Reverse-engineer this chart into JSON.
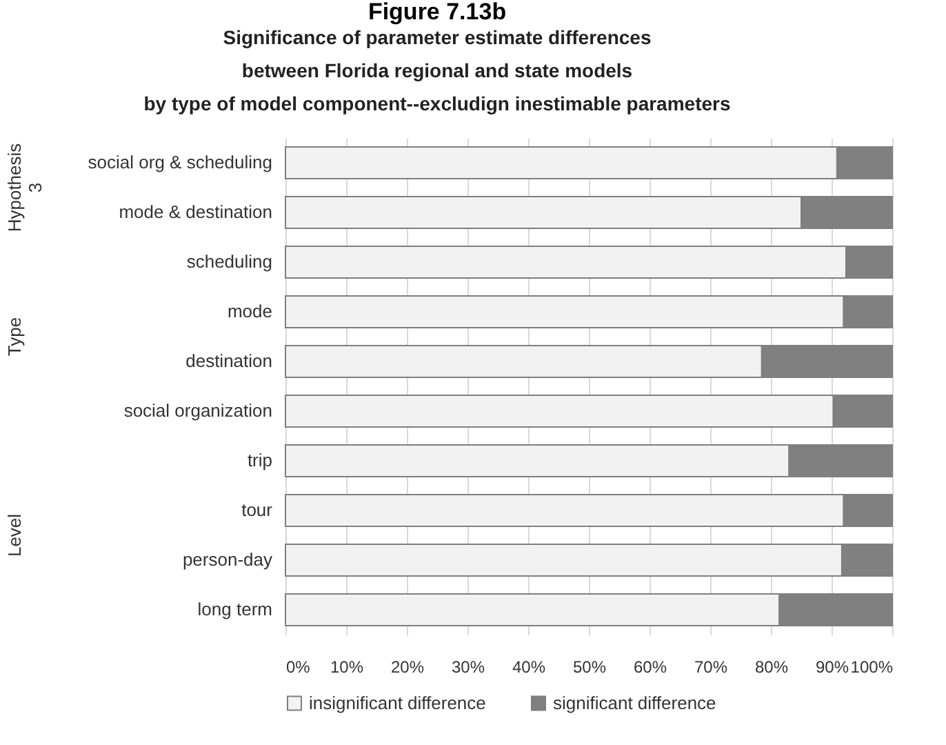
{
  "chart_data": {
    "type": "bar",
    "orientation": "horizontal",
    "stacked": true,
    "title": "Figure 7.13b",
    "subtitle": "Significance of parameter estimate differences\nbetween Florida regional and state models\nby type of model component--excludign inestimable parameters",
    "categories": [
      "social org & scheduling",
      "mode & destination",
      "scheduling",
      "mode",
      "destination",
      "social organization",
      "trip",
      "tour",
      "person-day",
      "long term"
    ],
    "series": [
      {
        "name": "insignificant difference",
        "color": "#f2f2f2",
        "values": [
          90.9,
          85.0,
          92.4,
          92.0,
          78.5,
          90.3,
          83.0,
          92.0,
          91.7,
          81.4
        ]
      },
      {
        "name": "significant difference",
        "color": "#808080",
        "values": [
          9.1,
          15.0,
          7.6,
          8.0,
          21.5,
          9.7,
          17.0,
          8.0,
          8.3,
          18.6
        ]
      }
    ],
    "xlim": [
      0,
      100
    ],
    "xticks": [
      {
        "value": 0,
        "label": "0%"
      },
      {
        "value": 10,
        "label": "10%"
      },
      {
        "value": 20,
        "label": "20%"
      },
      {
        "value": 30,
        "label": "30%"
      },
      {
        "value": 40,
        "label": "40%"
      },
      {
        "value": 50,
        "label": "50%"
      },
      {
        "value": 60,
        "label": "60%"
      },
      {
        "value": 70,
        "label": "70%"
      },
      {
        "value": 80,
        "label": "80%"
      },
      {
        "value": 90,
        "label": "90%"
      },
      {
        "value": 100,
        "label": "100%"
      }
    ],
    "annotations": [
      "Hypothesis 3",
      "Type",
      "Level"
    ],
    "grid": "x",
    "legend": "bottom"
  }
}
